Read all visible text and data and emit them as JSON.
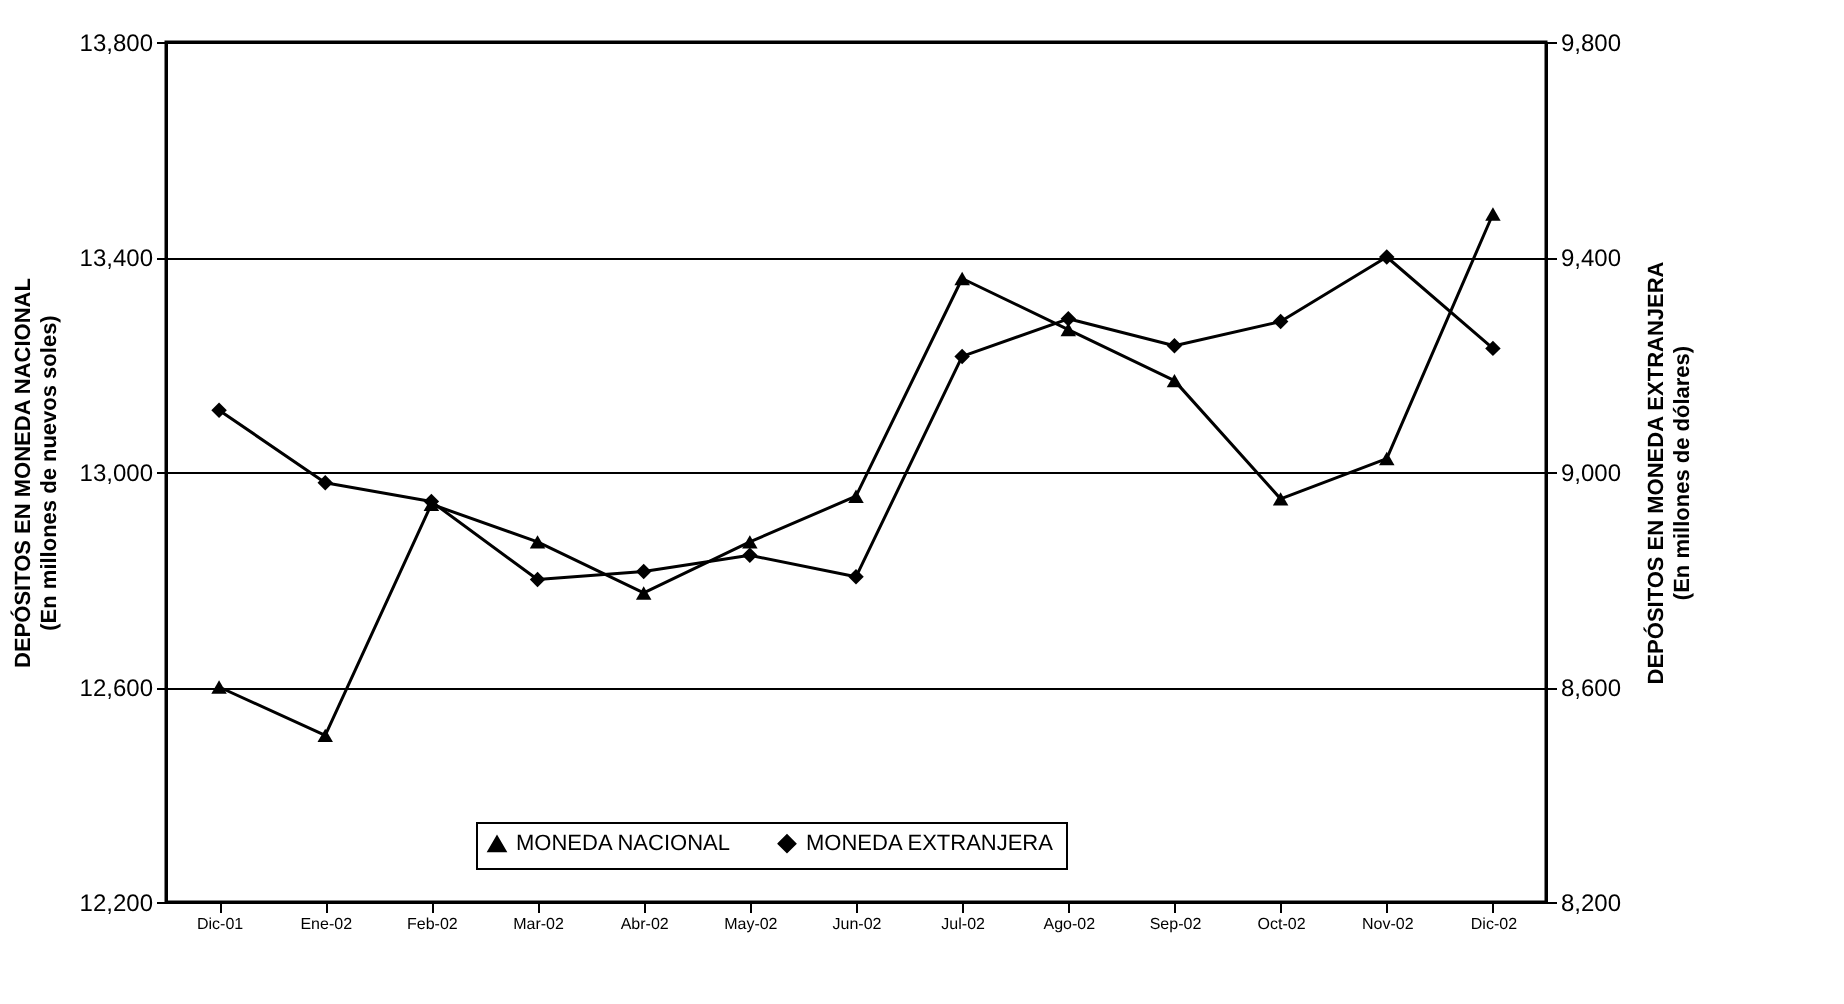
{
  "chart_data": {
    "type": "line",
    "categories": [
      "Dic-01",
      "Ene-02",
      "Feb-02",
      "Mar-02",
      "Abr-02",
      "May-02",
      "Jun-02",
      "Jul-02",
      "Ago-02",
      "Sep-02",
      "Oct-02",
      "Nov-02",
      "Dic-02"
    ],
    "series": [
      {
        "name": "MONEDA NACIONAL",
        "color": "#000000",
        "marker": "triangle",
        "values": [
          12600,
          12510,
          12940,
          12870,
          12775,
          12870,
          12955,
          13360,
          13265,
          13170,
          12950,
          13025,
          13480
        ]
      },
      {
        "name": "MONEDA EXTRANJERA",
        "color": "#000000",
        "marker": "diamond",
        "axis": "y2",
        "values": [
          9115,
          8980,
          8945,
          8800,
          8815,
          8845,
          8805,
          9215,
          9285,
          9235,
          9280,
          9400,
          9230
        ]
      }
    ],
    "ylabel": "DEPÓSITOS EN MONEDA NACIONAL\n(En millones de nuevos soles)",
    "y2label": "DEPÓSITOS EN MONEDA EXTRANJERA\n(En millones de dólares)",
    "ylim": [
      12200,
      13800
    ],
    "yticks": [
      {
        "value": 12200,
        "label": "12,200"
      },
      {
        "value": 12600,
        "label": "12,600"
      },
      {
        "value": 13000,
        "label": "13,000"
      },
      {
        "value": 13400,
        "label": "13,400"
      },
      {
        "value": 13800,
        "label": "13,800"
      }
    ],
    "y2lim": [
      8200,
      9800
    ],
    "y2ticks": [
      {
        "value": 8200,
        "label": "8,200"
      },
      {
        "value": 8600,
        "label": "8,600"
      },
      {
        "value": 9000,
        "label": "9,000"
      },
      {
        "value": 9400,
        "label": "9,400"
      },
      {
        "value": 9800,
        "label": "9,800"
      }
    ],
    "grid": "y",
    "legend": "bottom",
    "line_style": "solid"
  }
}
